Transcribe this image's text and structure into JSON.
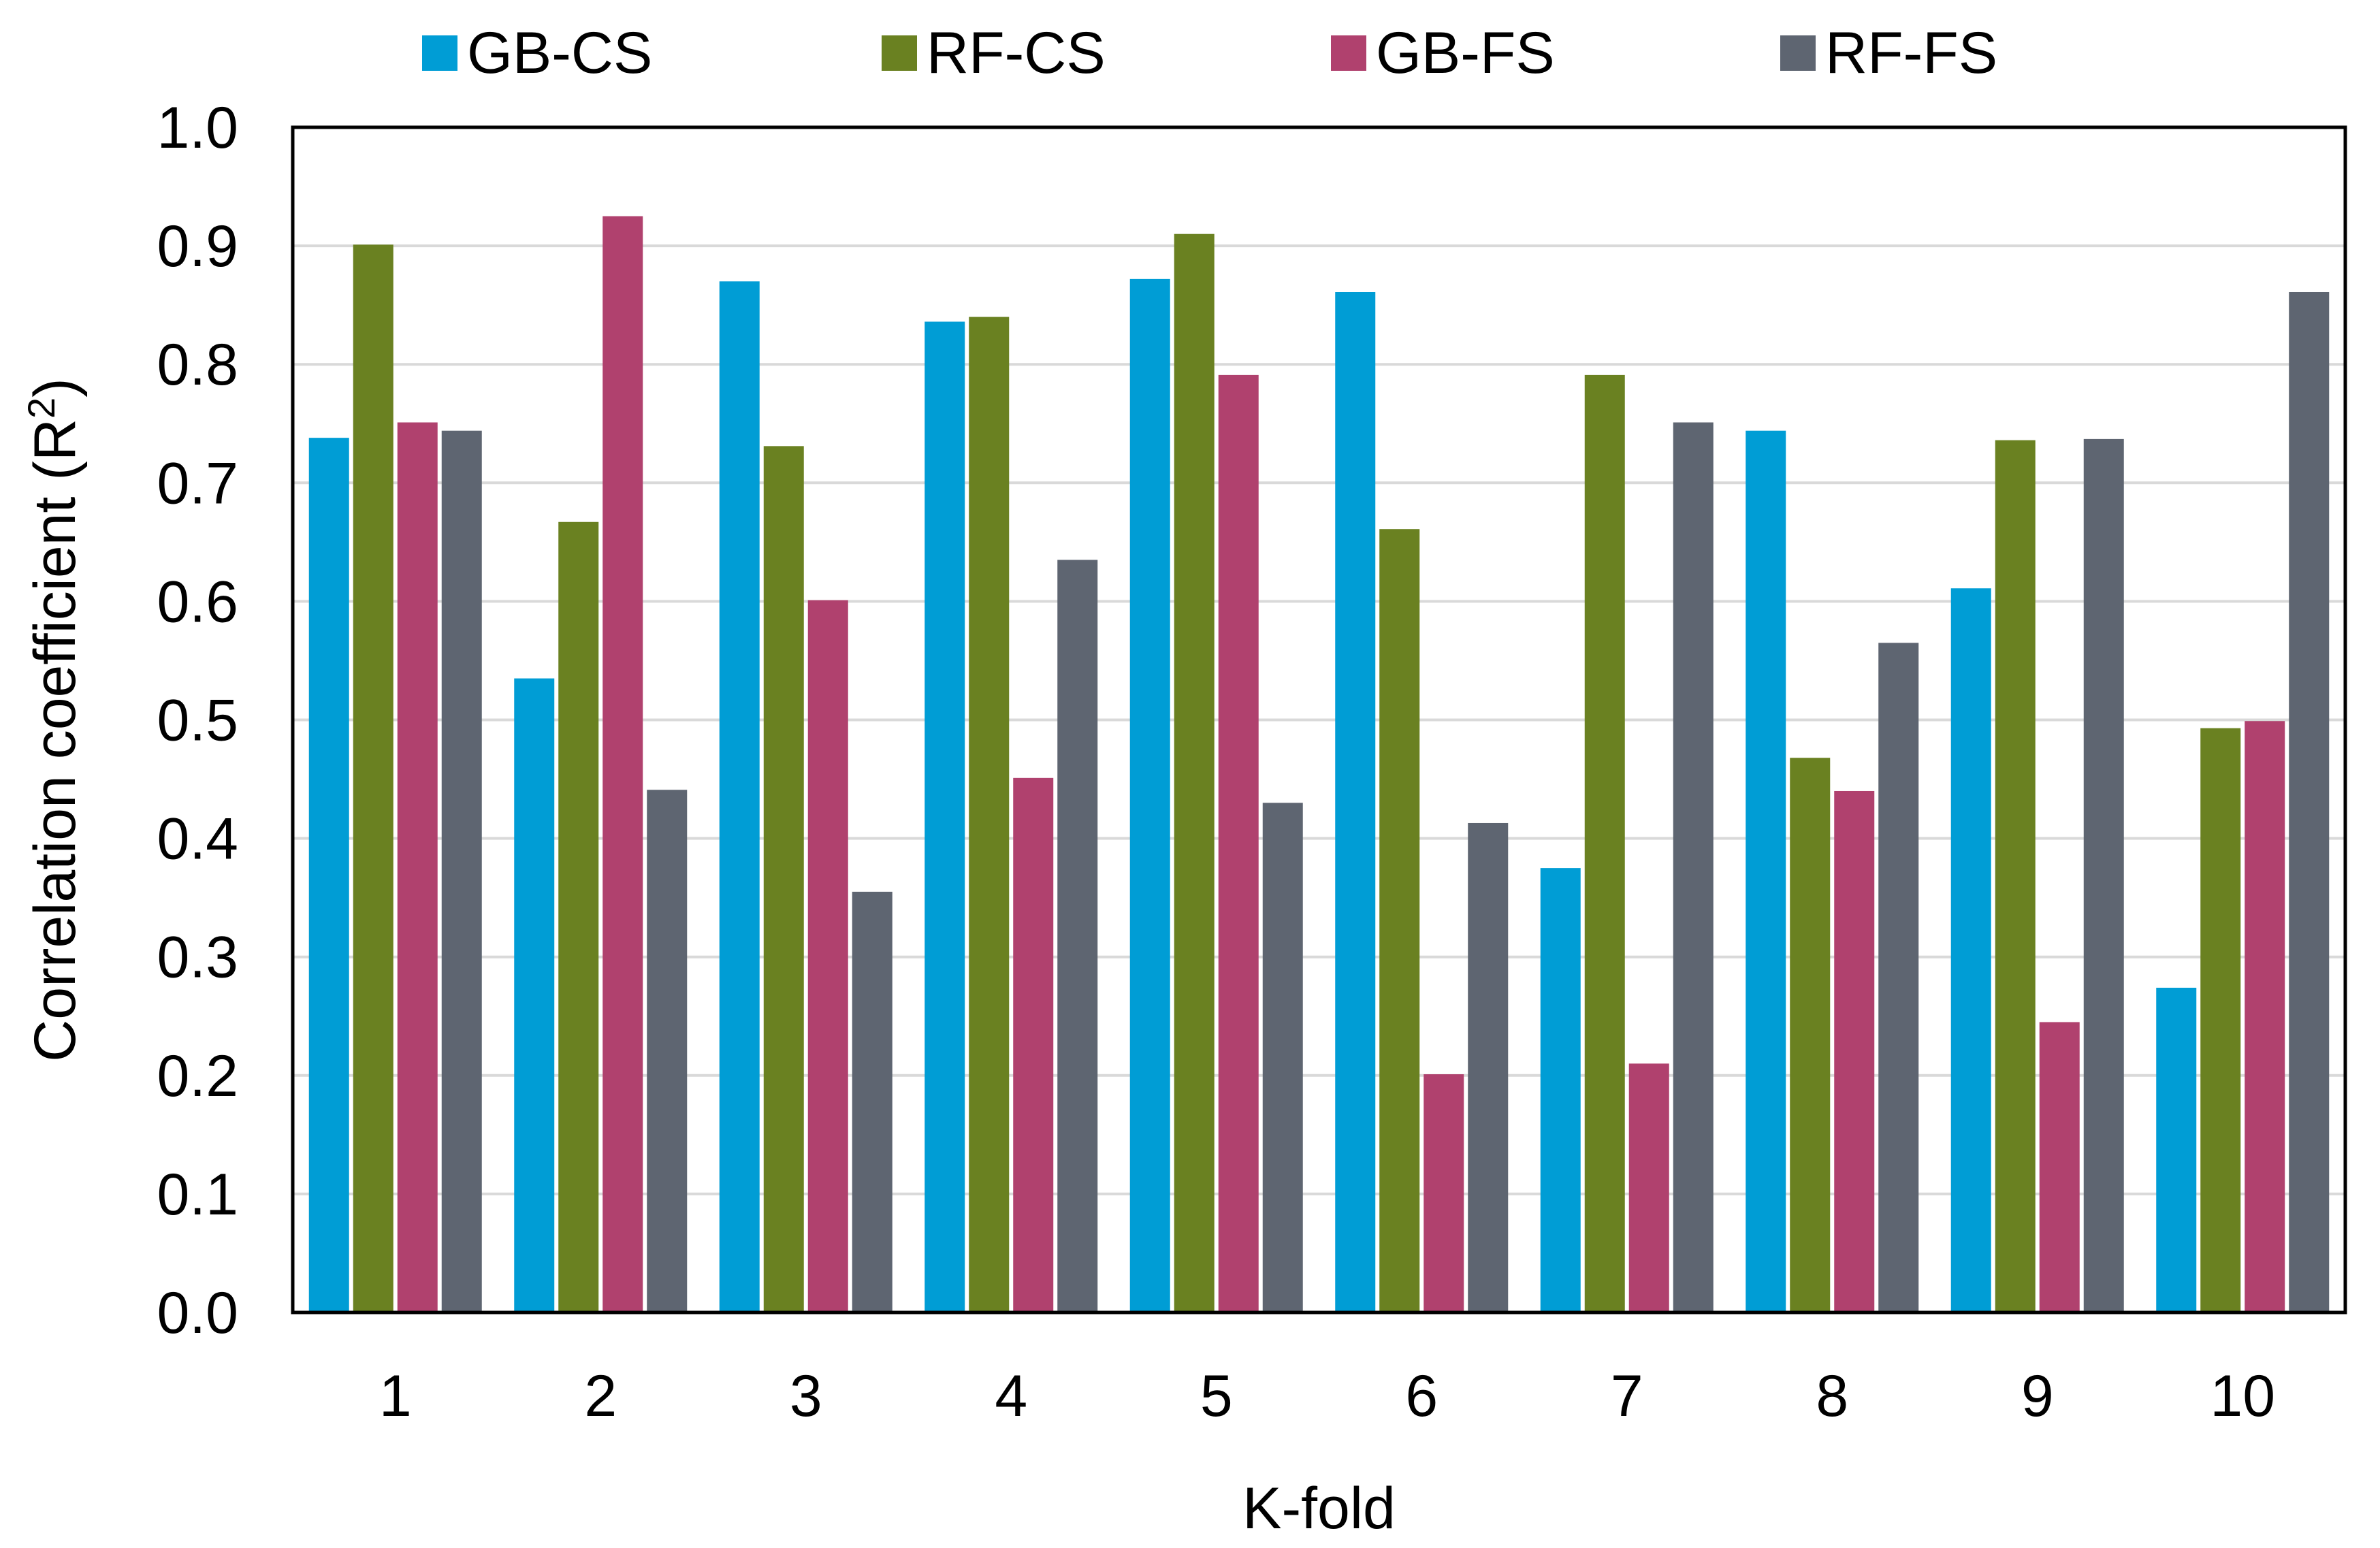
{
  "colors": {
    "GB-CS": "#009DD5",
    "RF-CS": "#6A8121",
    "GB-FS": "#B0416E",
    "RF-FS": "#5E6571",
    "gridline": "#D9D9D9",
    "axis": "#000000"
  },
  "legend": {
    "items": [
      {
        "label": "GB-CS"
      },
      {
        "label": "RF-CS"
      },
      {
        "label": "GB-FS"
      },
      {
        "label": "RF-FS"
      }
    ]
  },
  "chart_data": {
    "type": "bar",
    "title": "",
    "xlabel": "K-fold",
    "ylabel": "Correlation coefficient (R²)",
    "ylabel_base": "Correlation coefficient (R",
    "ylabel_sup": "2",
    "ylabel_tail": ")",
    "ylim": [
      0,
      1.0
    ],
    "yticks": [
      "0.0",
      "0.1",
      "0.2",
      "0.3",
      "0.4",
      "0.5",
      "0.6",
      "0.7",
      "0.8",
      "0.9",
      "1.0"
    ],
    "categories": [
      "1",
      "2",
      "3",
      "4",
      "5",
      "6",
      "7",
      "8",
      "9",
      "10"
    ],
    "legend_position": "top",
    "grid": true,
    "series": [
      {
        "name": "GB-CS",
        "values": [
          0.738,
          0.535,
          0.87,
          0.836,
          0.872,
          0.861,
          0.375,
          0.744,
          0.611,
          0.274
        ]
      },
      {
        "name": "RF-CS",
        "values": [
          0.901,
          0.667,
          0.731,
          0.84,
          0.91,
          0.661,
          0.791,
          0.468,
          0.736,
          0.493
        ]
      },
      {
        "name": "GB-FS",
        "values": [
          0.751,
          0.925,
          0.601,
          0.451,
          0.791,
          0.201,
          0.21,
          0.44,
          0.245,
          0.499
        ]
      },
      {
        "name": "RF-FS",
        "values": [
          0.744,
          0.441,
          0.355,
          0.635,
          0.43,
          0.413,
          0.751,
          0.565,
          0.737,
          0.861
        ]
      }
    ]
  }
}
